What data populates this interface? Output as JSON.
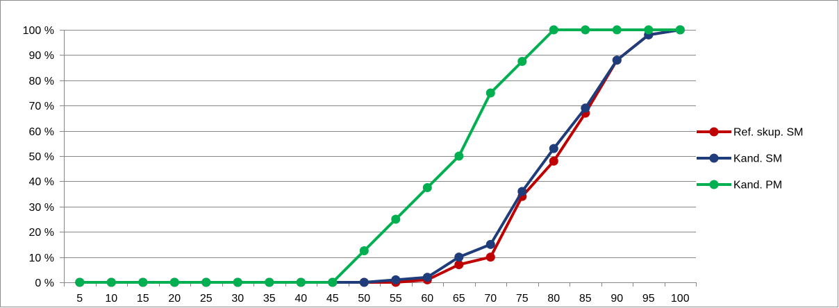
{
  "chart_data": {
    "type": "line",
    "title": "",
    "xlabel": "",
    "ylabel": "",
    "categories": [
      "5",
      "10",
      "15",
      "20",
      "25",
      "30",
      "35",
      "40",
      "45",
      "50",
      "55",
      "60",
      "65",
      "70",
      "75",
      "80",
      "85",
      "90",
      "95",
      "100"
    ],
    "y_ticks": [
      "0 %",
      "10 %",
      "20 %",
      "30 %",
      "40 %",
      "50 %",
      "60 %",
      "70 %",
      "80 %",
      "90 %",
      "100 %"
    ],
    "ylim": [
      0,
      100
    ],
    "grid": true,
    "legend_position": "right",
    "series": [
      {
        "name": "Ref. skup. SM",
        "color": "#c00000",
        "values": [
          0,
          0,
          0,
          0,
          0,
          0,
          0,
          0,
          0,
          0,
          0,
          1,
          7,
          10,
          34,
          48,
          67,
          88,
          98,
          100
        ]
      },
      {
        "name": "Kand. SM",
        "color": "#1f3d7a",
        "values": [
          0,
          0,
          0,
          0,
          0,
          0,
          0,
          0,
          0,
          0,
          1,
          2,
          10,
          15,
          36,
          53,
          69,
          88,
          98,
          100
        ]
      },
      {
        "name": "Kand. PM",
        "color": "#00b050",
        "values": [
          0,
          0,
          0,
          0,
          0,
          0,
          0,
          0,
          0,
          12.5,
          25,
          37.5,
          50,
          75,
          87.5,
          100,
          100,
          100,
          100,
          100
        ]
      }
    ]
  }
}
